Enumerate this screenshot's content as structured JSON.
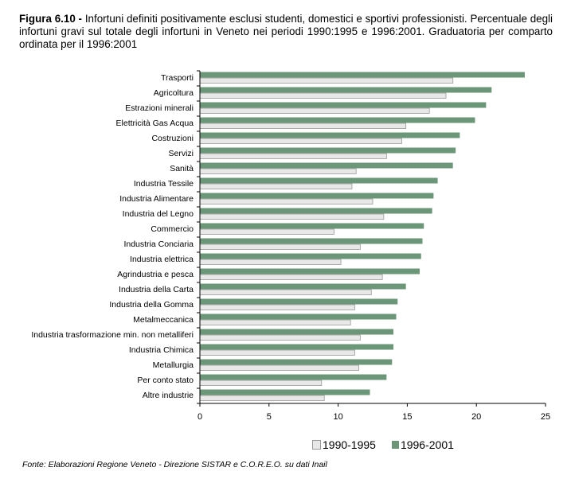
{
  "caption": {
    "label": "Figura 6.10 -",
    "text": "Infortuni definiti positivamente esclusi studenti, domestici e sportivi professionisti. Percentuale degli infortuni gravi sul totale degli infortuni in Veneto nei periodi 1990:1995 e 1996:2001. Graduatoria per comparto ordinata per il 1996:2001"
  },
  "source": "Fonte: Elaborazioni Regione Veneto - Direzione SISTAR e C.O.R.E.O. su dati Inail",
  "chart_data": {
    "type": "bar",
    "orientation": "horizontal",
    "categories": [
      "Trasporti",
      "Agricoltura",
      "Estrazioni minerali",
      "Elettricità Gas Acqua",
      "Costruzioni",
      "Servizi",
      "Sanità",
      "Industria Tessile",
      "Industria Alimentare",
      "Industria del Legno",
      "Commercio",
      "Industria Conciaria",
      "Industria elettrica",
      "Agrindustria e pesca",
      "Industria della Carta",
      "Industria della Gomma",
      "Metalmeccanica",
      "Industria trasformazione min. non metalliferi",
      "Industria Chimica",
      "Metallurgia",
      "Per conto stato",
      "Altre industrie"
    ],
    "series": [
      {
        "name": "1990-1995",
        "color": "#e8e8e8",
        "values": [
          18.3,
          17.8,
          16.6,
          14.9,
          14.6,
          13.5,
          11.3,
          11.0,
          12.5,
          13.3,
          9.7,
          11.6,
          10.2,
          13.2,
          12.4,
          11.2,
          10.9,
          11.6,
          11.2,
          11.5,
          8.8,
          9.0
        ]
      },
      {
        "name": "1996-2001",
        "color": "#6b9677",
        "values": [
          23.5,
          21.1,
          20.7,
          19.9,
          18.8,
          18.5,
          18.3,
          17.2,
          16.9,
          16.8,
          16.2,
          16.1,
          16.0,
          15.9,
          14.9,
          14.3,
          14.2,
          14.0,
          14.0,
          13.9,
          13.5,
          12.3
        ]
      }
    ],
    "xlim": [
      0,
      25
    ],
    "xticks": [
      "0",
      "5",
      "10",
      "15",
      "20",
      "25"
    ],
    "legend_position": "bottom",
    "grid": false
  }
}
